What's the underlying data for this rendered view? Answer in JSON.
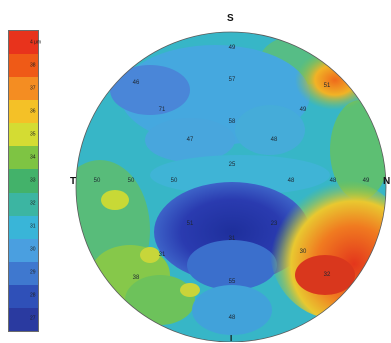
{
  "legend": {
    "unit_label": "4 μm",
    "swatches": [
      {
        "color": "#e8331c",
        "label": "4 μm"
      },
      {
        "color": "#ef5a17",
        "label": "38"
      },
      {
        "color": "#f48d22",
        "label": "37"
      },
      {
        "color": "#f4c127",
        "label": "36"
      },
      {
        "color": "#d4dc33",
        "label": "35"
      },
      {
        "color": "#7ec443",
        "label": "34"
      },
      {
        "color": "#43b26a",
        "label": "33"
      },
      {
        "color": "#3cb5a2",
        "label": "32"
      },
      {
        "color": "#39b5d8",
        "label": "31"
      },
      {
        "color": "#4a9fe0",
        "label": "30"
      },
      {
        "color": "#3f78cf",
        "label": "29"
      },
      {
        "color": "#2f50b8",
        "label": "28"
      },
      {
        "color": "#2a3aa0",
        "label": "27"
      }
    ]
  },
  "orientation": {
    "superior": "S",
    "temporal": "T",
    "nasal": "N",
    "inferior": "I"
  },
  "values": [
    {
      "id": "v1",
      "text": "49"
    },
    {
      "id": "v2",
      "text": "46"
    },
    {
      "id": "v3",
      "text": "57"
    },
    {
      "id": "v4",
      "text": "51"
    },
    {
      "id": "v5",
      "text": "71"
    },
    {
      "id": "v6",
      "text": "58"
    },
    {
      "id": "v7",
      "text": "49"
    },
    {
      "id": "v8",
      "text": "47"
    },
    {
      "id": "v9",
      "text": "48"
    },
    {
      "id": "v10",
      "text": "50"
    },
    {
      "id": "v11",
      "text": "50"
    },
    {
      "id": "v12",
      "text": "50"
    },
    {
      "id": "v13",
      "text": "48"
    },
    {
      "id": "v14",
      "text": "25"
    },
    {
      "id": "v15",
      "text": "48"
    },
    {
      "id": "v16",
      "text": "49"
    },
    {
      "id": "v17",
      "text": "51"
    },
    {
      "id": "v18",
      "text": "31"
    },
    {
      "id": "v19",
      "text": "23"
    },
    {
      "id": "v20",
      "text": "31"
    },
    {
      "id": "v21",
      "text": "30"
    },
    {
      "id": "v22",
      "text": "38"
    },
    {
      "id": "v23",
      "text": "55"
    },
    {
      "id": "v24",
      "text": "32"
    },
    {
      "id": "v25",
      "text": "48"
    },
    {
      "id": "v26",
      "text": "43"
    },
    {
      "id": "v27",
      "text": "48"
    }
  ]
}
